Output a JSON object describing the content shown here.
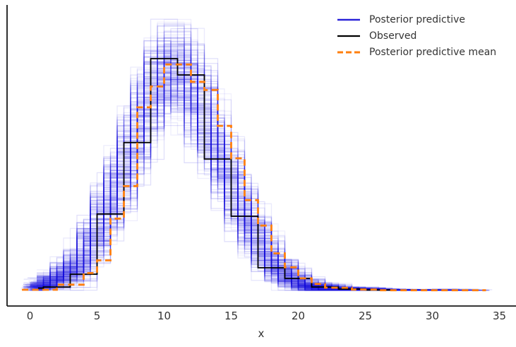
{
  "legend": {
    "items": [
      {
        "label": "Posterior predictive",
        "color": "#2a22d8",
        "dashed": false
      },
      {
        "label": "Observed",
        "color": "#000000",
        "dashed": false
      },
      {
        "label": "Posterior predictive mean",
        "color": "#ff7f0e",
        "dashed": true
      }
    ]
  },
  "axes": {
    "xlabel": "x",
    "x_ticks": [
      "0",
      "5",
      "10",
      "15",
      "20",
      "25",
      "30",
      "35"
    ]
  },
  "colors": {
    "posterior_samples": "#1b13e0",
    "observed": "#000000",
    "mean": "#ff7f0e",
    "spine": "#1a1a1a"
  },
  "chart_data": {
    "type": "line",
    "subtype": "posterior-predictive-check-step-histograms",
    "title": "",
    "xlabel": "x",
    "ylabel": "",
    "x_tick_values": [
      0,
      5,
      10,
      15,
      20,
      25,
      30,
      35
    ],
    "xlim": [
      -1.7,
      36.2
    ],
    "ylim_normalized": [
      -0.07,
      1.3
    ],
    "grid": false,
    "legend_position": "upper right",
    "series": [
      {
        "name": "Posterior predictive",
        "render": "step-sample-band",
        "color": "#1b13e0",
        "n_samples": 230,
        "seed": 7,
        "bin_width": 2,
        "x": [
          0,
          1,
          2,
          3,
          4,
          5,
          6,
          7,
          8,
          9,
          10,
          11,
          12,
          13,
          14,
          15,
          16,
          17,
          18,
          19,
          20,
          21,
          22,
          23,
          24,
          25,
          26,
          27,
          28,
          29,
          30,
          31,
          32,
          33,
          34
        ],
        "mean": [
          0.01,
          0.02,
          0.045,
          0.075,
          0.12,
          0.22,
          0.34,
          0.48,
          0.63,
          0.8,
          0.93,
          0.96,
          0.92,
          0.8,
          0.64,
          0.51,
          0.37,
          0.25,
          0.155,
          0.085,
          0.046,
          0.021,
          0.012,
          0.006,
          0.004,
          0.003,
          0.002,
          0.001,
          0.001,
          0.001,
          0.001,
          0.001,
          0.001,
          0.001,
          0.001
        ],
        "sd": [
          0.008,
          0.012,
          0.018,
          0.027,
          0.037,
          0.046,
          0.052,
          0.055,
          0.055,
          0.055,
          0.055,
          0.055,
          0.055,
          0.055,
          0.055,
          0.052,
          0.049,
          0.043,
          0.037,
          0.027,
          0.021,
          0.015,
          0.012,
          0.009,
          0.006,
          0.005,
          0.004,
          0.003,
          0.002,
          0.002,
          0.002,
          0.002,
          0.002,
          0.002,
          0.002
        ]
      },
      {
        "name": "Observed",
        "render": "step",
        "color": "#000000",
        "edges": [
          0.6,
          1,
          3,
          5,
          7,
          9,
          11,
          13,
          15,
          17,
          19,
          21,
          23,
          25,
          27
        ],
        "heights": [
          0.01,
          0.015,
          0.07,
          0.33,
          0.638,
          1.0,
          0.93,
          0.567,
          0.32,
          0.098,
          0.052,
          0.015,
          0.006,
          0.002
        ]
      },
      {
        "name": "Posterior predictive mean",
        "render": "step",
        "style": "dashed",
        "color": "#ff7f0e",
        "edges": [
          -0.6,
          2,
          4,
          5,
          6,
          7,
          8,
          9,
          10,
          12,
          13,
          14,
          15,
          16,
          17,
          18,
          19,
          20,
          21,
          22,
          24,
          26,
          34
        ],
        "heights": [
          0.003,
          0.025,
          0.075,
          0.13,
          0.31,
          0.45,
          0.79,
          0.88,
          0.975,
          0.9,
          0.865,
          0.71,
          0.57,
          0.39,
          0.28,
          0.16,
          0.1,
          0.052,
          0.028,
          0.012,
          0.004,
          0.001
        ]
      }
    ]
  }
}
